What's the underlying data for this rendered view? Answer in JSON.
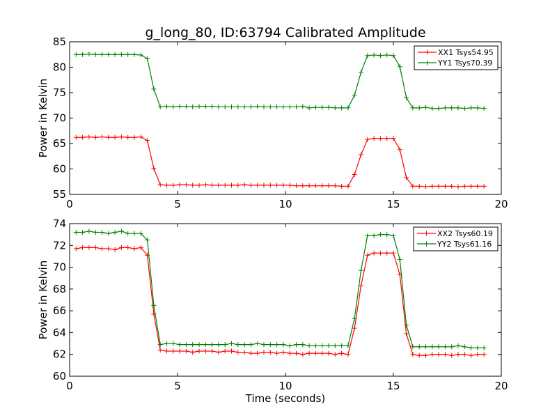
{
  "title": "g_long_80, ID:63794 Calibrated Amplitude",
  "colors": {
    "red": "#ff0000",
    "green": "#008000",
    "axes": "#000000",
    "background": "#ffffff"
  },
  "chart_data": [
    {
      "type": "line",
      "title": "g_long_80, ID:63794 Calibrated Amplitude",
      "xlabel": "",
      "ylabel": "Power in Kelvin",
      "xlim": [
        0,
        20
      ],
      "ylim": [
        55,
        85
      ],
      "xticks": [
        0,
        5,
        10,
        15,
        20
      ],
      "yticks": [
        55,
        60,
        65,
        70,
        75,
        80,
        85
      ],
      "grid": false,
      "legend_position": "top-right",
      "x": [
        0.3,
        0.6,
        0.9,
        1.2,
        1.5,
        1.8,
        2.1,
        2.4,
        2.7,
        3.0,
        3.3,
        3.6,
        3.9,
        4.2,
        4.5,
        4.8,
        5.1,
        5.4,
        5.7,
        6.0,
        6.3,
        6.6,
        6.9,
        7.2,
        7.5,
        7.8,
        8.1,
        8.4,
        8.7,
        9.0,
        9.3,
        9.6,
        9.9,
        10.2,
        10.5,
        10.8,
        11.1,
        11.4,
        11.7,
        12.0,
        12.3,
        12.6,
        12.9,
        13.2,
        13.5,
        13.8,
        14.1,
        14.4,
        14.7,
        15.0,
        15.3,
        15.6,
        15.9,
        16.2,
        16.5,
        16.8,
        17.1,
        17.4,
        17.7,
        18.0,
        18.3,
        18.6,
        18.9,
        19.2
      ],
      "series": [
        {
          "name": "XX1 Tsys54.95",
          "color": "#ff0000",
          "marker": "+",
          "values": [
            66.2,
            66.2,
            66.3,
            66.2,
            66.3,
            66.2,
            66.2,
            66.3,
            66.2,
            66.2,
            66.3,
            65.6,
            60.1,
            56.9,
            56.8,
            56.8,
            56.9,
            56.9,
            56.8,
            56.8,
            56.9,
            56.8,
            56.8,
            56.8,
            56.8,
            56.8,
            56.9,
            56.8,
            56.8,
            56.8,
            56.8,
            56.8,
            56.8,
            56.8,
            56.7,
            56.7,
            56.7,
            56.7,
            56.7,
            56.7,
            56.7,
            56.6,
            56.6,
            58.9,
            62.8,
            65.8,
            66.0,
            66.0,
            66.0,
            66.0,
            63.8,
            58.3,
            56.6,
            56.6,
            56.5,
            56.6,
            56.6,
            56.6,
            56.6,
            56.5,
            56.6,
            56.6,
            56.6,
            56.6
          ]
        },
        {
          "name": "YY1 Tsys70.39",
          "color": "#008000",
          "marker": "+",
          "values": [
            82.5,
            82.5,
            82.6,
            82.5,
            82.5,
            82.5,
            82.5,
            82.5,
            82.5,
            82.5,
            82.4,
            81.7,
            75.7,
            72.2,
            72.3,
            72.2,
            72.3,
            72.3,
            72.2,
            72.3,
            72.3,
            72.3,
            72.2,
            72.2,
            72.2,
            72.2,
            72.2,
            72.2,
            72.3,
            72.2,
            72.2,
            72.2,
            72.2,
            72.2,
            72.2,
            72.3,
            72.0,
            72.1,
            72.1,
            72.1,
            72.0,
            72.0,
            72.0,
            74.5,
            79.0,
            82.3,
            82.4,
            82.3,
            82.4,
            82.3,
            80.1,
            74.0,
            72.0,
            72.0,
            72.1,
            71.9,
            71.9,
            72.0,
            72.0,
            72.0,
            71.9,
            72.0,
            72.0,
            71.9
          ]
        }
      ]
    },
    {
      "type": "line",
      "title": "",
      "xlabel": "Time (seconds)",
      "ylabel": "Power in Kelvin",
      "xlim": [
        0,
        20
      ],
      "ylim": [
        60,
        74
      ],
      "xticks": [
        0,
        5,
        10,
        15,
        20
      ],
      "yticks": [
        60,
        62,
        64,
        66,
        68,
        70,
        72,
        74
      ],
      "grid": false,
      "legend_position": "top-right",
      "x": [
        0.3,
        0.6,
        0.9,
        1.2,
        1.5,
        1.8,
        2.1,
        2.4,
        2.7,
        3.0,
        3.3,
        3.6,
        3.9,
        4.2,
        4.5,
        4.8,
        5.1,
        5.4,
        5.7,
        6.0,
        6.3,
        6.6,
        6.9,
        7.2,
        7.5,
        7.8,
        8.1,
        8.4,
        8.7,
        9.0,
        9.3,
        9.6,
        9.9,
        10.2,
        10.5,
        10.8,
        11.1,
        11.4,
        11.7,
        12.0,
        12.3,
        12.6,
        12.9,
        13.2,
        13.5,
        13.8,
        14.1,
        14.4,
        14.7,
        15.0,
        15.3,
        15.6,
        15.9,
        16.2,
        16.5,
        16.8,
        17.1,
        17.4,
        17.7,
        18.0,
        18.3,
        18.6,
        18.9,
        19.2
      ],
      "series": [
        {
          "name": "XX2 Tsys60.19",
          "color": "#ff0000",
          "marker": "+",
          "values": [
            71.7,
            71.8,
            71.8,
            71.8,
            71.7,
            71.7,
            71.6,
            71.8,
            71.8,
            71.7,
            71.8,
            71.1,
            65.7,
            62.4,
            62.3,
            62.3,
            62.3,
            62.3,
            62.2,
            62.3,
            62.3,
            62.3,
            62.2,
            62.3,
            62.3,
            62.2,
            62.2,
            62.1,
            62.1,
            62.2,
            62.2,
            62.1,
            62.2,
            62.1,
            62.1,
            62.0,
            62.1,
            62.1,
            62.1,
            62.1,
            62.0,
            62.1,
            62.0,
            64.4,
            68.3,
            71.1,
            71.3,
            71.3,
            71.3,
            71.3,
            69.3,
            63.9,
            62.0,
            61.9,
            61.9,
            62.0,
            62.0,
            62.0,
            61.9,
            62.0,
            62.0,
            61.9,
            62.0,
            62.0
          ]
        },
        {
          "name": "YY2 Tsys61.16",
          "color": "#008000",
          "marker": "+",
          "values": [
            73.2,
            73.2,
            73.3,
            73.2,
            73.2,
            73.1,
            73.2,
            73.3,
            73.1,
            73.1,
            73.1,
            72.5,
            66.5,
            62.9,
            63.0,
            63.0,
            62.9,
            62.9,
            62.9,
            62.9,
            62.9,
            62.9,
            62.9,
            62.9,
            63.0,
            62.9,
            62.9,
            62.9,
            63.0,
            62.9,
            62.9,
            62.9,
            62.9,
            62.8,
            62.9,
            62.9,
            62.8,
            62.8,
            62.8,
            62.8,
            62.8,
            62.8,
            62.8,
            65.3,
            69.7,
            72.9,
            72.9,
            73.0,
            73.0,
            72.9,
            70.7,
            64.7,
            62.7,
            62.7,
            62.7,
            62.7,
            62.7,
            62.7,
            62.7,
            62.8,
            62.7,
            62.6,
            62.6,
            62.6
          ]
        }
      ]
    }
  ]
}
